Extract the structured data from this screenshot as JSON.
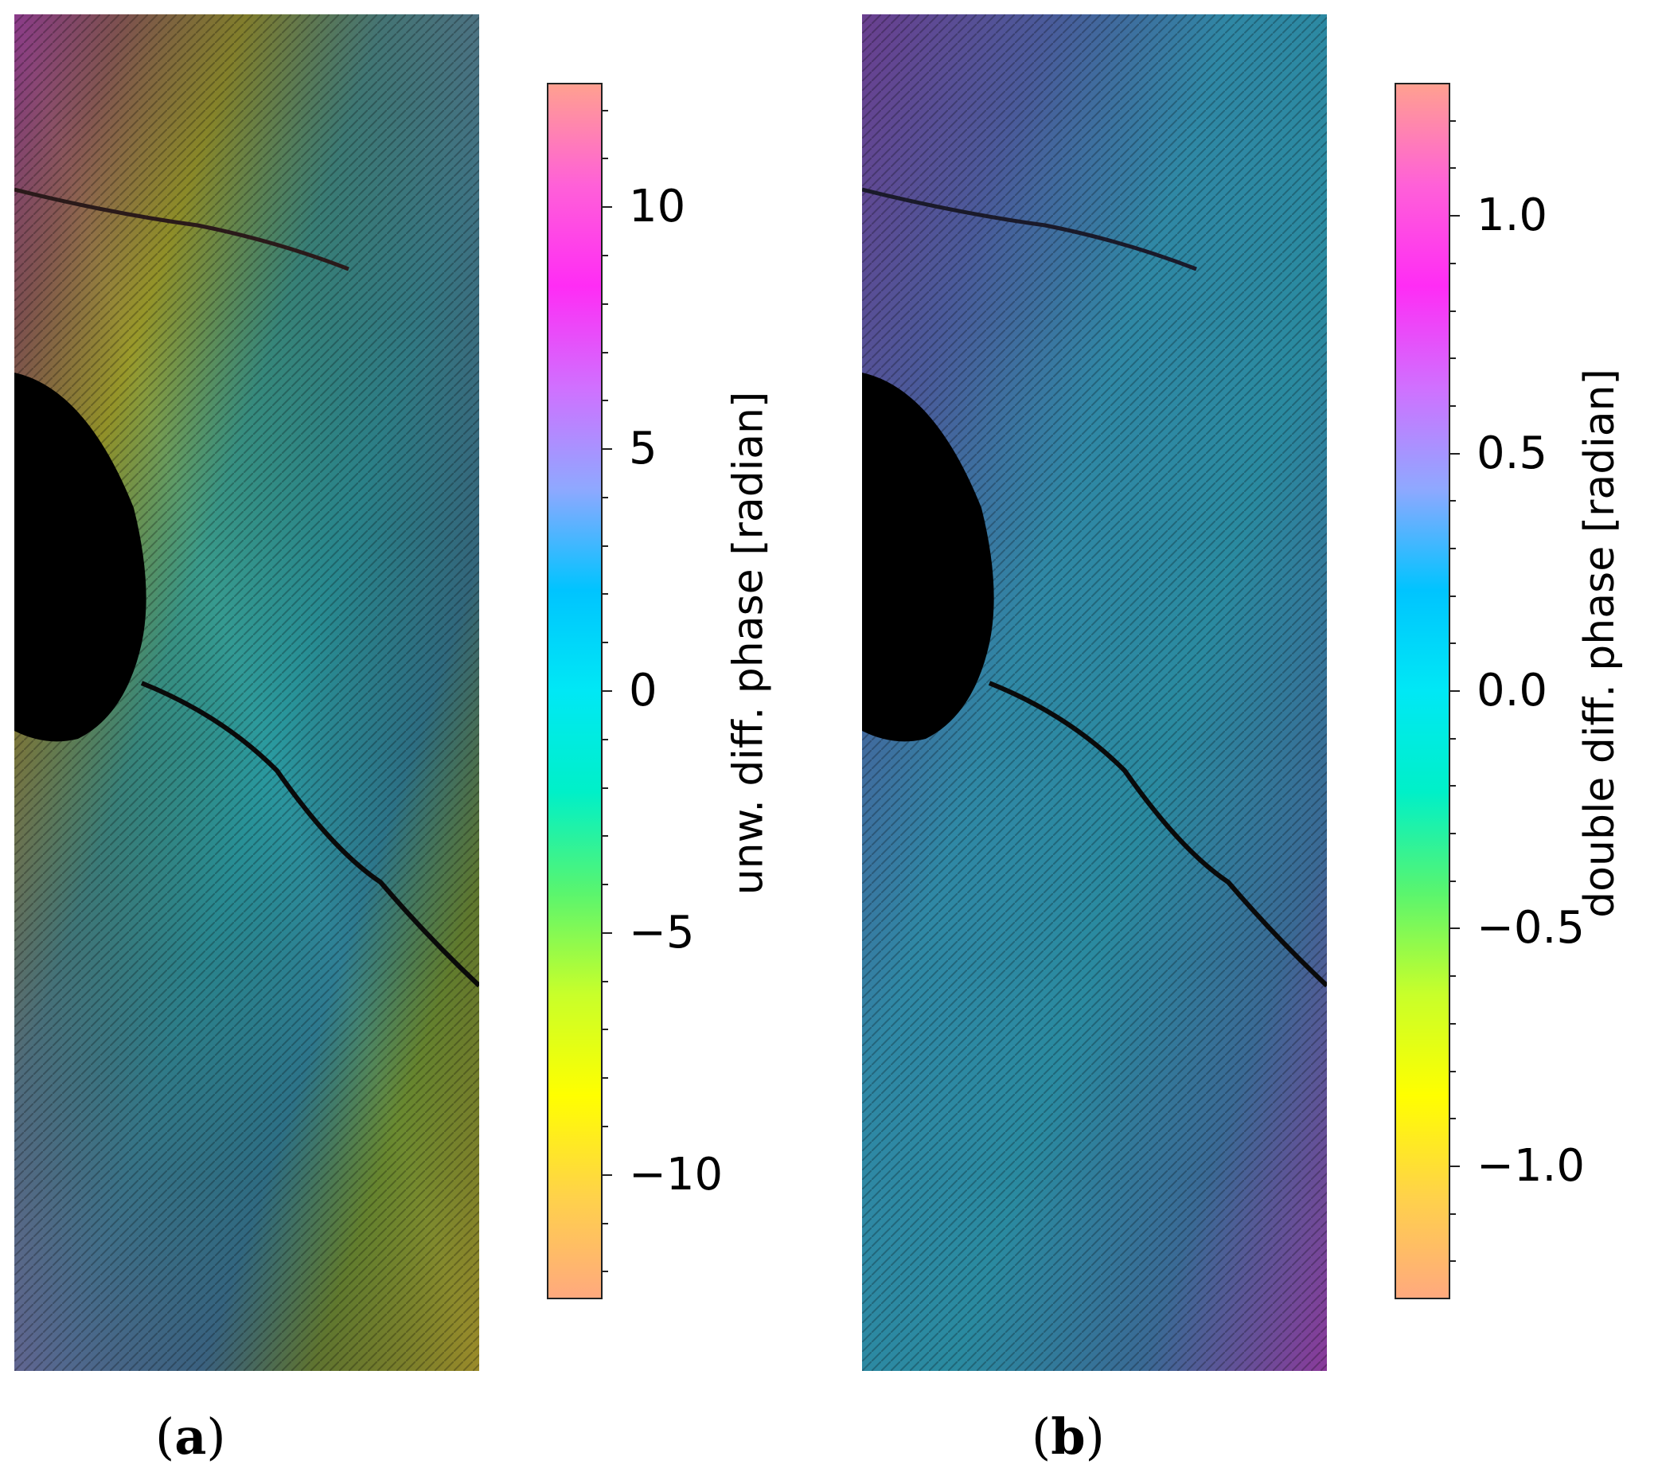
{
  "panels": [
    {
      "id": "a",
      "label_open": "(",
      "label_letter": "a",
      "label_close": ")",
      "colorbar": {
        "label": "unw. diff. phase [radian]",
        "range": [
          -12.57,
          12.57
        ],
        "ticks": [
          {
            "value": 10,
            "text": "10"
          },
          {
            "value": 5,
            "text": "5"
          },
          {
            "value": 0,
            "text": "0"
          },
          {
            "value": -5,
            "text": "−5"
          },
          {
            "value": -10,
            "text": "−10"
          }
        ],
        "minor_step": 1
      }
    },
    {
      "id": "b",
      "label_open": "(",
      "label_letter": "b",
      "label_close": ")",
      "colorbar": {
        "label": "double diff. phase [radian]",
        "range": [
          -1.28,
          1.28
        ],
        "ticks": [
          {
            "value": 1.0,
            "text": "1.0"
          },
          {
            "value": 0.5,
            "text": "0.5"
          },
          {
            "value": 0.0,
            "text": "0.0"
          },
          {
            "value": -0.5,
            "text": "−0.5"
          },
          {
            "value": -1.0,
            "text": "−1.0"
          }
        ],
        "minor_step": 0.1
      }
    }
  ],
  "colormap": [
    "#ffa97e",
    "#ffd24a",
    "#ffff00",
    "#c8ff2a",
    "#5af56e",
    "#00f0c8",
    "#00e8f5",
    "#00c4ff",
    "#8fa8ff",
    "#d070ff",
    "#ff2cf5",
    "#ff60d8",
    "#ffa090"
  ]
}
